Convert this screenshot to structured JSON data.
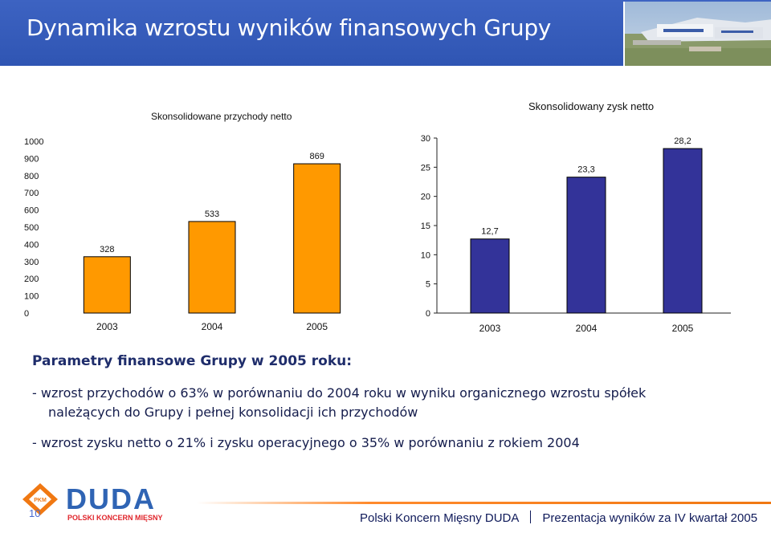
{
  "slide": {
    "title": "Dynamika wzrostu wyników finansowych Grupy",
    "params_heading": "Parametry finansowe Grupy w 2005 roku:",
    "bullet_1_line_1": "- wzrost przychodów o 63% w porównaniu do 2004 roku w wyniku organicznego wzrostu spółek",
    "bullet_1_line_2": "należących do Grupy i pełnej konsolidacji ich przychodów",
    "bullet_2": "- wzrost zysku netto o 21% i zysku operacyjnego o 35% w porównaniu z rokiem 2004",
    "page_number": "10",
    "footer_company": "Polski Koncern Mięsny DUDA",
    "footer_presentation": "Prezentacja wyników za IV kwartał 2005",
    "logo_text": "DUDA",
    "logo_subtext": "POLSKI KONCERN MIĘSNY",
    "logo_badge": "PKM"
  },
  "colors": {
    "header": "#3159b8",
    "revenue_bar": "#ff9900",
    "profit_bar": "#333399",
    "accent_line": "#f07812"
  },
  "chart_data": [
    {
      "type": "bar",
      "title": "Skonsolidowane przychody netto",
      "categories": [
        "2003",
        "2004",
        "2005"
      ],
      "values": [
        328,
        533,
        869
      ],
      "value_labels": [
        "328",
        "533",
        "869"
      ],
      "y_ticks": [
        "0",
        "100",
        "200",
        "300",
        "400",
        "500",
        "600",
        "700",
        "800",
        "900",
        "1000"
      ],
      "ylim": [
        0,
        1000
      ],
      "grid": false,
      "legend": "none"
    },
    {
      "type": "bar",
      "title": "Skonsolidowany zysk netto",
      "categories": [
        "2003",
        "2004",
        "2005"
      ],
      "values": [
        12.7,
        23.3,
        28.2
      ],
      "value_labels": [
        "12,7",
        "23,3",
        "28,2"
      ],
      "y_ticks": [
        "0",
        "5",
        "10",
        "15",
        "20",
        "25",
        "30"
      ],
      "ylim": [
        0,
        30
      ],
      "grid": false,
      "legend": "none"
    }
  ]
}
